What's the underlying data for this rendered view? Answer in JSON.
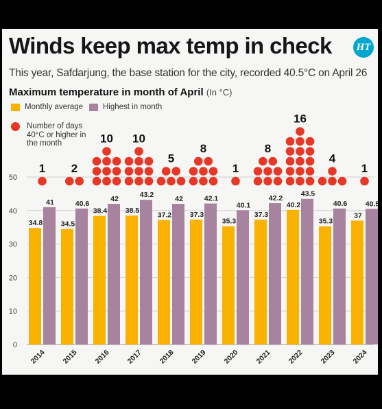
{
  "headline": "Winds keep max temp in check",
  "logo_text": "HT",
  "subtitle": "This year, Safdarjung, the base station for the city, recorded 40.5°C on April 26",
  "chart_title": "Maximum temperature in month of April",
  "chart_unit": "(In °C)",
  "legend": {
    "avg": "Monthly average",
    "max": "Highest in month",
    "days": "Number of days 40°C or higher in the month"
  },
  "colors": {
    "avg": "#f9b200",
    "max": "#a8839f",
    "dot": "#e63727",
    "grid": "#cfcfcf"
  },
  "chart_data": {
    "type": "bar",
    "categories": [
      "2014",
      "2015",
      "2016",
      "2017",
      "2018",
      "2019",
      "2020",
      "2021",
      "2022",
      "2023",
      "2024"
    ],
    "series": [
      {
        "name": "Monthly average",
        "values": [
          34.8,
          34.5,
          38.4,
          38.5,
          37.2,
          37.3,
          35.3,
          37.3,
          40.2,
          35.3,
          37
        ]
      },
      {
        "name": "Highest in month",
        "values": [
          41,
          40.6,
          42,
          43.2,
          42,
          42.1,
          40.1,
          42.2,
          43.5,
          40.6,
          40.5
        ]
      },
      {
        "name": "Number of days 40°C or higher in the month",
        "values": [
          1,
          2,
          10,
          10,
          5,
          8,
          1,
          8,
          16,
          4,
          1
        ]
      }
    ],
    "yticks": [
      0,
      10,
      20,
      30,
      40,
      50
    ],
    "ylim": [
      0,
      50
    ],
    "grid": true,
    "legend_position": "top-left"
  }
}
